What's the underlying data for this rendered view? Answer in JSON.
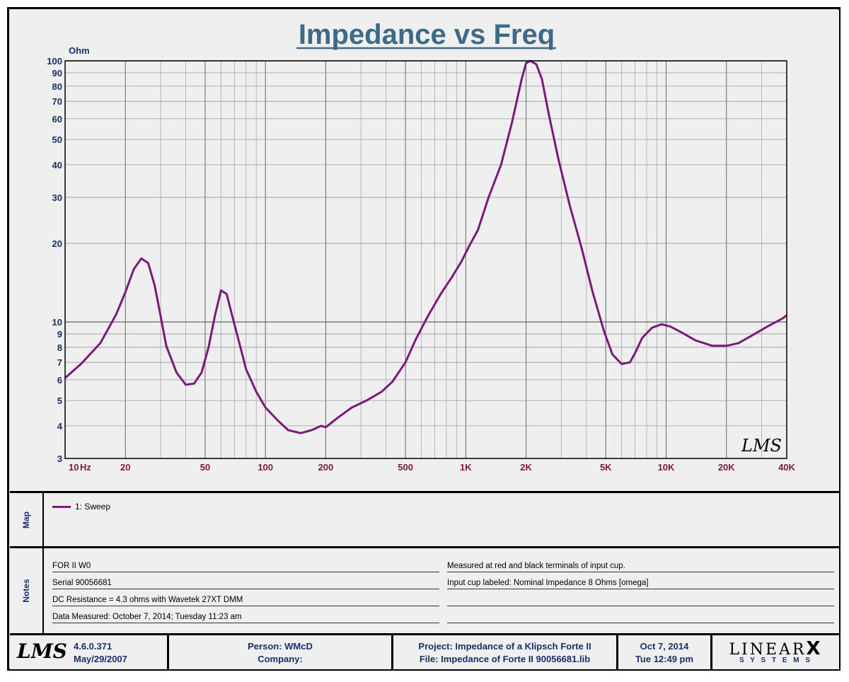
{
  "chart_data": {
    "type": "line",
    "title": "Impedance vs Freq",
    "ylabel": "Ohm",
    "xunit": "Hz",
    "xscale": "log",
    "yscale": "log",
    "xlim": [
      10,
      40000
    ],
    "ylim": [
      3,
      100
    ],
    "grid": true,
    "x_tick_labels": [
      "10",
      "20",
      "50",
      "100",
      "200",
      "500",
      "1K",
      "2K",
      "5K",
      "10K",
      "20K",
      "40K"
    ],
    "y_tick_labels": [
      "100",
      "90",
      "80",
      "70",
      "60",
      "50",
      "40",
      "30",
      "20",
      "10",
      "9",
      "8",
      "7",
      "6",
      "5",
      "4",
      "3"
    ],
    "legend": "map-panel",
    "series": [
      {
        "name": "1: Sweep",
        "color": "#7b1a7b",
        "x": [
          10,
          12,
          15,
          18,
          20,
          22,
          24,
          26,
          28,
          30,
          32,
          36,
          40,
          44,
          48,
          52,
          56,
          60,
          64,
          70,
          76,
          80,
          90,
          100,
          115,
          130,
          150,
          170,
          190,
          200,
          230,
          270,
          320,
          380,
          430,
          500,
          560,
          650,
          750,
          850,
          950,
          1050,
          1150,
          1300,
          1500,
          1700,
          1900,
          2000,
          2100,
          2250,
          2400,
          2600,
          2900,
          3300,
          3800,
          4300,
          4900,
          5400,
          6000,
          6600,
          7000,
          7600,
          8500,
          9500,
          10500,
          12000,
          14000,
          17000,
          20000,
          23000,
          27000,
          32000,
          38000,
          40000
        ],
        "y": [
          6.1,
          6.9,
          8.3,
          10.7,
          13.0,
          15.9,
          17.5,
          16.8,
          13.8,
          10.5,
          8.1,
          6.4,
          5.75,
          5.8,
          6.4,
          8.0,
          10.6,
          13.2,
          12.8,
          9.8,
          7.7,
          6.6,
          5.4,
          4.7,
          4.2,
          3.85,
          3.75,
          3.85,
          4.0,
          3.95,
          4.3,
          4.7,
          5.0,
          5.4,
          5.9,
          7.0,
          8.5,
          10.6,
          12.8,
          14.8,
          17.0,
          19.8,
          22.5,
          30.0,
          40.0,
          58.0,
          85.0,
          98.0,
          100.0,
          97.0,
          85.0,
          62.0,
          42.0,
          28.0,
          19.0,
          13.0,
          9.2,
          7.5,
          6.9,
          7.0,
          7.6,
          8.7,
          9.5,
          9.8,
          9.6,
          9.1,
          8.5,
          8.1,
          8.1,
          8.3,
          8.9,
          9.6,
          10.3,
          10.6
        ]
      }
    ]
  },
  "map": {
    "label": "Map",
    "entry": "1: Sweep"
  },
  "notes": {
    "label": "Notes",
    "left": [
      "FOR II W0",
      "Serial 90056681",
      "DC Resistance = 4.3 ohms with Wavetek 27XT DMM",
      "Data Measured: October 7, 2014;  Tuesday 11:23 am"
    ],
    "right": [
      "Measured at red and black terminals of input cup.",
      "Input cup labeled: Nominal Impedance 8 Ohms [omega]",
      "",
      ""
    ]
  },
  "footer": {
    "logo": "LMS",
    "version": "4.6.0.371",
    "version_date": "May/29/2007",
    "person": "Person: WMcD",
    "company": "Company:",
    "project": "Project: Impedance of a Klipsch Forte II",
    "file": "File: Impedance of Forte II 90056681.lib",
    "date": "Oct  7, 2014",
    "time": "Tue 12:49 pm",
    "brand_top": "LINEAR",
    "brand_x": "X",
    "brand_bottom": "S Y S T E M S"
  },
  "watermark": "LMS"
}
